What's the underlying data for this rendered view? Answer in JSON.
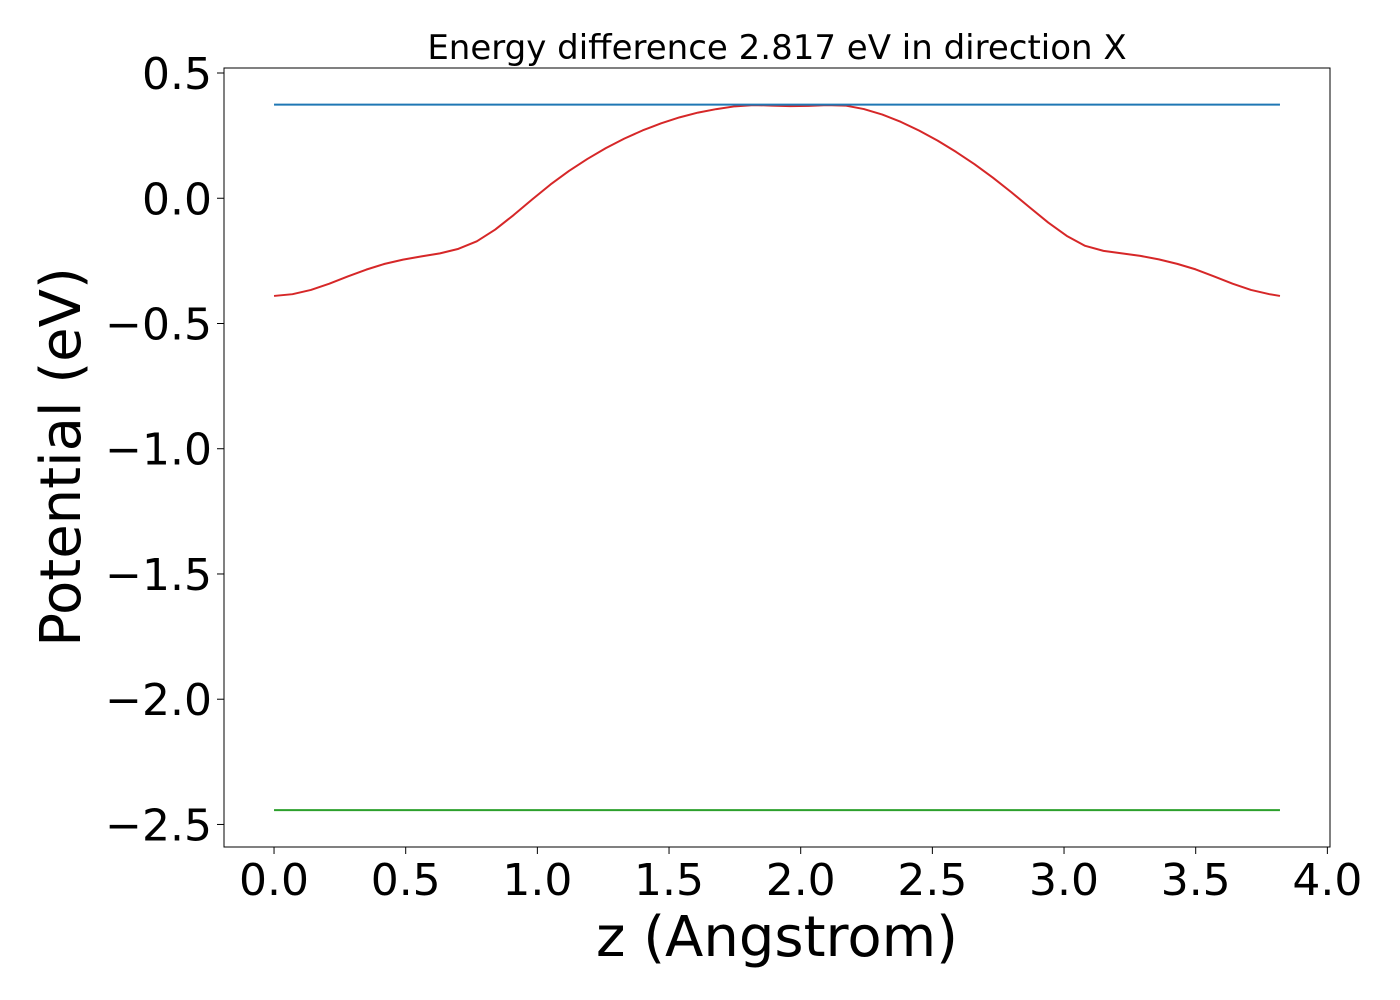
{
  "chart_data": {
    "type": "line",
    "title": "Energy difference 2.817 eV in direction X",
    "xlabel": "z (Angstrom)",
    "ylabel": "Potential (eV)",
    "xlim": [
      -0.19,
      4.01
    ],
    "ylim": [
      -2.59,
      0.52
    ],
    "xticks": [
      0.0,
      0.5,
      1.0,
      1.5,
      2.0,
      2.5,
      3.0,
      3.5,
      4.0
    ],
    "xtick_labels": [
      "0.0",
      "0.5",
      "1.0",
      "1.5",
      "2.0",
      "2.5",
      "3.0",
      "3.5",
      "4.0"
    ],
    "yticks": [
      0.5,
      0.0,
      -0.5,
      -1.0,
      -1.5,
      -2.0,
      -2.5
    ],
    "ytick_labels": [
      "0.5",
      "0.0",
      "−0.5",
      "−1.0",
      "−1.5",
      "−2.0",
      "−2.5"
    ],
    "grid": false,
    "series": [
      {
        "color": "#d62728",
        "x": [
          0.0,
          0.07,
          0.14,
          0.21,
          0.28,
          0.35,
          0.42,
          0.49,
          0.56,
          0.63,
          0.7,
          0.77,
          0.84,
          0.91,
          0.98,
          1.05,
          1.12,
          1.19,
          1.26,
          1.33,
          1.4,
          1.47,
          1.54,
          1.61,
          1.68,
          1.75,
          1.82,
          1.89,
          1.96,
          2.03,
          2.1,
          2.17,
          2.24,
          2.31,
          2.38,
          2.45,
          2.52,
          2.59,
          2.66,
          2.73,
          2.8,
          2.87,
          2.94,
          3.01,
          3.08,
          3.15,
          3.22,
          3.29,
          3.36,
          3.43,
          3.5,
          3.57,
          3.64,
          3.71,
          3.78,
          3.82
        ],
        "y": [
          -0.39,
          -0.383,
          -0.366,
          -0.341,
          -0.312,
          -0.285,
          -0.262,
          -0.245,
          -0.232,
          -0.22,
          -0.202,
          -0.172,
          -0.125,
          -0.067,
          -0.005,
          0.055,
          0.109,
          0.157,
          0.2,
          0.238,
          0.271,
          0.299,
          0.323,
          0.342,
          0.356,
          0.367,
          0.372,
          0.37,
          0.368,
          0.369,
          0.372,
          0.37,
          0.356,
          0.334,
          0.305,
          0.27,
          0.23,
          0.185,
          0.136,
          0.082,
          0.024,
          -0.037,
          -0.097,
          -0.15,
          -0.19,
          -0.21,
          -0.22,
          -0.23,
          -0.244,
          -0.262,
          -0.284,
          -0.312,
          -0.341,
          -0.366,
          -0.383,
          -0.39
        ]
      },
      {
        "color": "#1f77b4",
        "x": [
          0.0,
          3.82
        ],
        "y": [
          0.374,
          0.374
        ]
      },
      {
        "color": "#2ca02c",
        "x": [
          0.0,
          3.82
        ],
        "y": [
          -2.443,
          -2.443
        ]
      }
    ]
  }
}
